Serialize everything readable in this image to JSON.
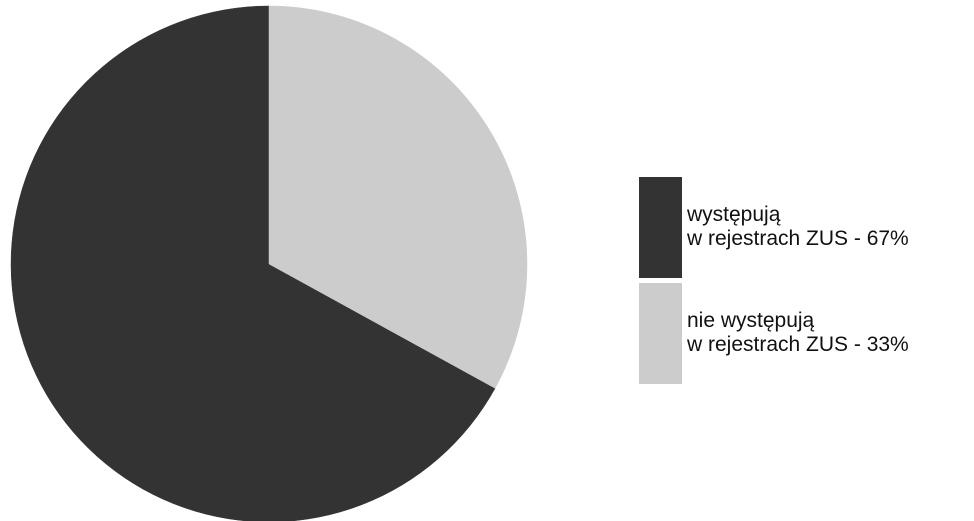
{
  "chart_data": {
    "type": "pie",
    "slices": [
      {
        "label_line1": "występują",
        "label_line2": "w rejestrach ZUS - 67%",
        "value": 67,
        "color": "#333333"
      },
      {
        "label_line1": "nie występują",
        "label_line2": "w rejestrach ZUS - 33%",
        "value": 33,
        "color": "#cccccc"
      }
    ],
    "start_angle_deg": 0,
    "direction": "counterclockwise",
    "legend_position": "right"
  }
}
